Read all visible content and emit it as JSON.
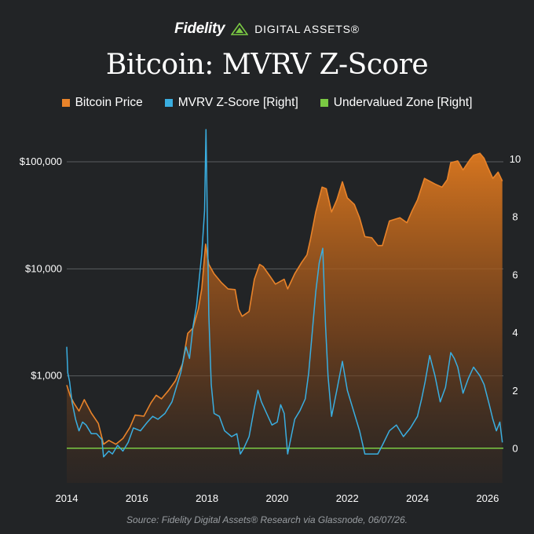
{
  "brand": {
    "name": "Fidelity",
    "sub": "DIGITAL ASSETS®"
  },
  "colors": {
    "price": "#e8832a",
    "zscore": "#3aaee0",
    "zone": "#7ac943",
    "grid": "#5a5d60"
  },
  "source": "Source: Fidelity Digital Assets® Research via Glassnode, 06/07/26.",
  "chart_data": {
    "type": "line",
    "title": "Bitcoin: MVRV Z-Score",
    "legend": [
      "Bitcoin Price",
      "MVRV Z-Score [Right]",
      "Undervalued Zone [Right]"
    ],
    "legend_position": "top",
    "x_ticks": [
      "2014",
      "2016",
      "2018",
      "2020",
      "2022",
      "2024",
      "2026"
    ],
    "y_left_ticks": [
      "$1,000",
      "$10,000",
      "$100,000"
    ],
    "y_left_tick_values": [
      1000,
      10000,
      100000
    ],
    "y_left_scale": "log",
    "y_left_range": [
      100,
      200000
    ],
    "y_right_ticks": [
      "0",
      "2",
      "4",
      "6",
      "8",
      "10"
    ],
    "y_right_tick_values": [
      0,
      2,
      4,
      6,
      8,
      10
    ],
    "y_right_range": [
      -1.2,
      11
    ],
    "x_range": [
      2014.0,
      2026.45
    ],
    "grid": "horizontal",
    "undervalued_zone": 0,
    "series": [
      {
        "name": "Bitcoin Price",
        "type": "area",
        "x": [
          2014.0,
          2014.1,
          2014.2,
          2014.35,
          2014.5,
          2014.7,
          2014.9,
          2015.05,
          2015.2,
          2015.4,
          2015.6,
          2015.8,
          2015.95,
          2016.2,
          2016.4,
          2016.55,
          2016.7,
          2016.9,
          2017.1,
          2017.3,
          2017.45,
          2017.6,
          2017.75,
          2017.85,
          2017.96,
          2018.05,
          2018.2,
          2018.4,
          2018.6,
          2018.8,
          2018.9,
          2019.0,
          2019.2,
          2019.35,
          2019.5,
          2019.6,
          2019.8,
          2019.95,
          2020.2,
          2020.3,
          2020.5,
          2020.7,
          2020.85,
          2020.95,
          2021.1,
          2021.28,
          2021.4,
          2021.55,
          2021.7,
          2021.86,
          2022.0,
          2022.2,
          2022.35,
          2022.5,
          2022.7,
          2022.87,
          2023.0,
          2023.2,
          2023.5,
          2023.7,
          2023.85,
          2024.0,
          2024.2,
          2024.5,
          2024.7,
          2024.85,
          2024.95,
          2025.15,
          2025.3,
          2025.5,
          2025.6,
          2025.78,
          2025.9,
          2026.0,
          2026.15,
          2026.3,
          2026.42
        ],
        "values": [
          820,
          650,
          560,
          470,
          600,
          450,
          360,
          230,
          250,
          230,
          260,
          330,
          430,
          420,
          560,
          660,
          610,
          730,
          900,
          1300,
          2500,
          2800,
          4200,
          6500,
          17000,
          11000,
          9000,
          7500,
          6500,
          6400,
          4200,
          3600,
          4000,
          8000,
          11000,
          10500,
          8500,
          7200,
          8000,
          6500,
          9000,
          11500,
          13500,
          19000,
          34000,
          58000,
          56000,
          34000,
          44000,
          65000,
          46000,
          40000,
          30000,
          20000,
          19500,
          16500,
          16500,
          28000,
          30000,
          27000,
          35000,
          44000,
          70000,
          62000,
          58000,
          68000,
          98000,
          102000,
          84000,
          105000,
          115000,
          120000,
          108000,
          90000,
          70000,
          80000,
          66000
        ]
      },
      {
        "name": "MVRV Z-Score [Right]",
        "type": "line",
        "x": [
          2014.0,
          2014.03,
          2014.08,
          2014.15,
          2014.25,
          2014.35,
          2014.45,
          2014.55,
          2014.7,
          2014.85,
          2015.0,
          2015.05,
          2015.2,
          2015.3,
          2015.45,
          2015.6,
          2015.75,
          2015.9,
          2016.1,
          2016.3,
          2016.45,
          2016.6,
          2016.8,
          2017.0,
          2017.1,
          2017.25,
          2017.4,
          2017.5,
          2017.6,
          2017.7,
          2017.85,
          2017.93,
          2017.97,
          2018.05,
          2018.12,
          2018.2,
          2018.35,
          2018.5,
          2018.7,
          2018.85,
          2018.95,
          2019.05,
          2019.2,
          2019.35,
          2019.45,
          2019.55,
          2019.7,
          2019.85,
          2020.0,
          2020.1,
          2020.2,
          2020.3,
          2020.5,
          2020.65,
          2020.8,
          2020.9,
          2021.0,
          2021.1,
          2021.2,
          2021.3,
          2021.38,
          2021.45,
          2021.55,
          2021.7,
          2021.86,
          2022.0,
          2022.2,
          2022.35,
          2022.5,
          2022.65,
          2022.87,
          2023.0,
          2023.2,
          2023.4,
          2023.6,
          2023.8,
          2024.0,
          2024.12,
          2024.22,
          2024.35,
          2024.5,
          2024.65,
          2024.8,
          2024.95,
          2025.05,
          2025.15,
          2025.3,
          2025.45,
          2025.6,
          2025.78,
          2025.9,
          2026.05,
          2026.15,
          2026.25,
          2026.35,
          2026.42
        ],
        "values": [
          3.5,
          2.6,
          2.3,
          1.6,
          1.0,
          0.6,
          0.9,
          0.8,
          0.5,
          0.5,
          0.3,
          -0.3,
          -0.1,
          -0.2,
          0.1,
          -0.1,
          0.2,
          0.7,
          0.6,
          0.9,
          1.1,
          1.0,
          1.2,
          1.6,
          2.0,
          2.6,
          3.5,
          3.1,
          4.2,
          4.9,
          6.7,
          8.2,
          11.0,
          4.6,
          2.2,
          1.2,
          1.1,
          0.6,
          0.4,
          0.5,
          -0.2,
          0.0,
          0.4,
          1.4,
          2.0,
          1.6,
          1.2,
          0.8,
          0.9,
          1.5,
          1.2,
          -0.2,
          1.0,
          1.3,
          1.7,
          2.6,
          4.0,
          5.4,
          6.4,
          6.9,
          4.2,
          2.5,
          1.1,
          2.0,
          3.0,
          2.0,
          1.2,
          0.6,
          -0.2,
          -0.2,
          -0.2,
          0.1,
          0.6,
          0.8,
          0.4,
          0.7,
          1.1,
          1.7,
          2.3,
          3.2,
          2.5,
          1.6,
          2.1,
          3.3,
          3.1,
          2.8,
          1.9,
          2.4,
          2.8,
          2.5,
          2.2,
          1.5,
          1.0,
          0.6,
          0.9,
          0.2
        ]
      },
      {
        "name": "Undervalued Zone [Right]",
        "type": "hline",
        "values": [
          0
        ]
      }
    ]
  }
}
